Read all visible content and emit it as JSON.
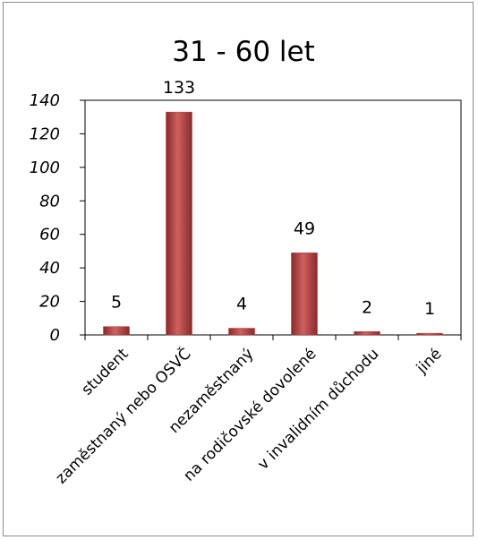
{
  "chart_data": {
    "type": "bar",
    "title": "31 - 60 let",
    "categories": [
      "student",
      "zaměstnaný nebo OSVČ",
      "nezaměstnaný",
      "na rodičovské dovolené",
      "v invalidním důchodu",
      "jiné"
    ],
    "values": [
      5,
      133,
      4,
      49,
      2,
      1
    ],
    "data_labels": [
      "5",
      "133",
      "4",
      "49",
      "2",
      "1"
    ],
    "ylim": [
      0,
      140
    ],
    "yticks": [
      0,
      20,
      40,
      60,
      80,
      100,
      120,
      140
    ],
    "ytick_labels": [
      "0",
      "20",
      "40",
      "60",
      "80",
      "100",
      "120",
      "140"
    ],
    "xlabel": "",
    "ylabel": "",
    "grid": false,
    "legend": "none",
    "bar_color": "#b33a3a"
  }
}
